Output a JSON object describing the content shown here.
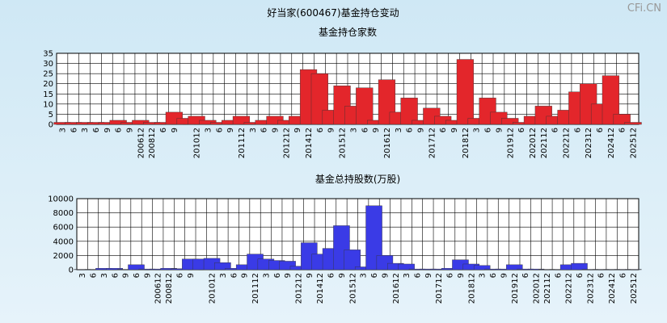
{
  "title": "好当家(600467)基金持仓变动",
  "watermark": "CFi.CN",
  "chart_data": [
    {
      "type": "bar",
      "title": "基金持仓家数",
      "color": "#e3262b",
      "categories": [
        "3",
        "6",
        "3",
        "6",
        "9",
        "6",
        "9",
        "200612",
        "200812",
        "6",
        "9",
        null,
        "201012",
        "3",
        "6",
        "9",
        "201112",
        "3",
        "6",
        "9",
        "201212",
        "9",
        "201412",
        "6",
        "9",
        "201512",
        "3",
        "6",
        "9",
        "201612",
        "3",
        "6",
        "9",
        "201712",
        "6",
        "9",
        "201812",
        "3",
        "6",
        "9",
        "201912",
        "6",
        "202012",
        "202112",
        "6",
        "202212",
        "6",
        "202312",
        "6",
        "202412",
        "6",
        "202512"
      ],
      "values": [
        1,
        1,
        1,
        1,
        1,
        2,
        1,
        2,
        1,
        1,
        6,
        3,
        4,
        2,
        1,
        2,
        4,
        1,
        2,
        4,
        2,
        4,
        27,
        25,
        7,
        19,
        9,
        18,
        2,
        22,
        6,
        13,
        2,
        8,
        4,
        2,
        32,
        3,
        13,
        6,
        3,
        1,
        4,
        9,
        4,
        7,
        16,
        20,
        10,
        24,
        5,
        1
      ],
      "ylim": [
        0,
        35
      ],
      "yticks": [
        0,
        5,
        10,
        15,
        20,
        25,
        30,
        35
      ],
      "grid": true
    },
    {
      "type": "bar",
      "title": "基金总持股数(万股)",
      "color": "#3a3be6",
      "categories": [
        "3",
        "6",
        "3",
        "6",
        "9",
        "6",
        "9",
        "200612",
        "200812",
        "6",
        "9",
        null,
        "201012",
        "3",
        "6",
        "9",
        "201112",
        "3",
        "6",
        "9",
        "201212",
        "9",
        "201412",
        "6",
        "9",
        "201512",
        "3",
        "6",
        "9",
        "201612",
        "3",
        "6",
        "9",
        "201712",
        "6",
        "9",
        "201812",
        "3",
        "6",
        "9",
        "201912",
        "6",
        "202012",
        "202112",
        "6",
        "202212",
        "6",
        "202312",
        "6",
        "202412",
        "6",
        "202512"
      ],
      "values": [
        50,
        50,
        200,
        200,
        50,
        700,
        100,
        100,
        200,
        150,
        1500,
        1500,
        1600,
        1000,
        200,
        700,
        2200,
        1500,
        1300,
        1200,
        500,
        3800,
        2200,
        3000,
        6200,
        2800,
        400,
        9000,
        2000,
        900,
        800,
        100,
        100,
        100,
        200,
        1400,
        800,
        600,
        100,
        100,
        700,
        100,
        100,
        50,
        50,
        700,
        900,
        50,
        50,
        50,
        50,
        50
      ],
      "ylim": [
        0,
        10000
      ],
      "yticks": [
        0,
        2000,
        4000,
        6000,
        8000,
        10000
      ],
      "grid": true
    }
  ]
}
